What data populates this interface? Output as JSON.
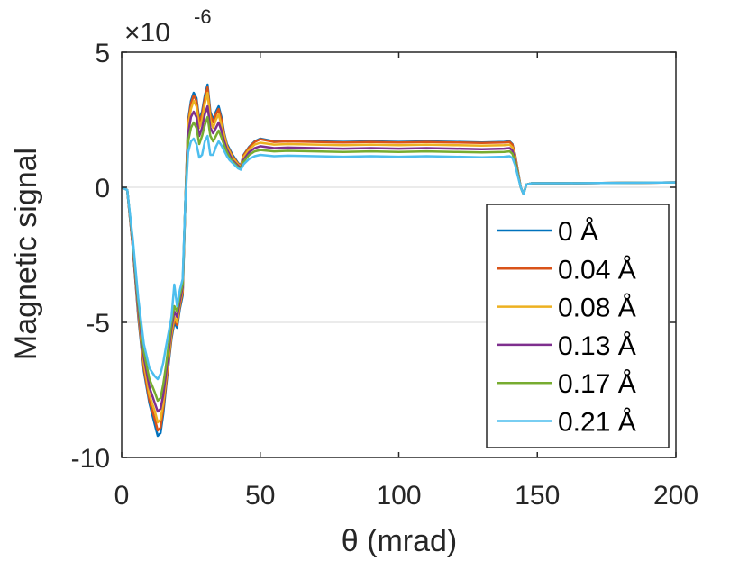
{
  "chart_data": {
    "type": "line",
    "xlabel": "θ (mrad)",
    "ylabel": "Magnetic signal",
    "exponent_base": "×10",
    "exponent_power": "-6",
    "xlim": [
      0,
      200
    ],
    "ylim": [
      -10,
      5
    ],
    "xticks": [
      0,
      50,
      100,
      150,
      200
    ],
    "yticks": [
      -10,
      -5,
      0,
      5
    ],
    "y_gridlines": [
      -5,
      0
    ],
    "legend_location": "bottom-right",
    "x": [
      0,
      2,
      4,
      6,
      8,
      10,
      12,
      13,
      14,
      15,
      16,
      18,
      19,
      20,
      21,
      22,
      23,
      24,
      25,
      26,
      27,
      28,
      29,
      30,
      31,
      32,
      33,
      34,
      35,
      36,
      37,
      38,
      39,
      40,
      42,
      43,
      44,
      46,
      48,
      50,
      55,
      60,
      70,
      80,
      90,
      100,
      110,
      120,
      130,
      138,
      140,
      141,
      142,
      143,
      144,
      145,
      146,
      148,
      150,
      160,
      200
    ],
    "series": [
      {
        "name": "0 Å",
        "color": "#0072BD",
        "values": [
          0,
          -0.1,
          -2.2,
          -4.8,
          -6.8,
          -8.0,
          -8.8,
          -9.2,
          -9.1,
          -8.4,
          -7.4,
          -5.6,
          -5.0,
          -5.2,
          -4.5,
          -4.0,
          -0.5,
          2.5,
          3.2,
          3.5,
          3.3,
          2.5,
          2.8,
          3.4,
          3.8,
          2.8,
          2.5,
          2.8,
          3.0,
          2.6,
          2.0,
          1.6,
          1.4,
          1.2,
          0.9,
          0.8,
          1.2,
          1.5,
          1.7,
          1.8,
          1.7,
          1.72,
          1.7,
          1.68,
          1.7,
          1.68,
          1.7,
          1.68,
          1.66,
          1.68,
          1.7,
          1.6,
          1.2,
          0.6,
          0.0,
          -0.25,
          0.1,
          0.15,
          0.15,
          0.15,
          0.18
        ]
      },
      {
        "name": "0.04 Å",
        "color": "#D95319",
        "values": [
          0,
          -0.1,
          -2.2,
          -4.7,
          -6.7,
          -7.9,
          -8.6,
          -9.0,
          -8.9,
          -8.2,
          -7.3,
          -5.5,
          -4.9,
          -5.1,
          -4.4,
          -3.9,
          -0.5,
          2.4,
          3.1,
          3.4,
          3.2,
          2.4,
          2.7,
          3.3,
          3.7,
          2.7,
          2.4,
          2.7,
          2.9,
          2.5,
          1.95,
          1.55,
          1.35,
          1.15,
          0.88,
          0.78,
          1.18,
          1.48,
          1.68,
          1.78,
          1.68,
          1.7,
          1.68,
          1.66,
          1.68,
          1.66,
          1.68,
          1.66,
          1.64,
          1.66,
          1.68,
          1.58,
          1.18,
          0.58,
          0.0,
          -0.25,
          0.1,
          0.15,
          0.15,
          0.15,
          0.18
        ]
      },
      {
        "name": "0.08 Å",
        "color": "#EDB120",
        "values": [
          0,
          -0.1,
          -2.1,
          -4.6,
          -6.5,
          -7.7,
          -8.3,
          -8.7,
          -8.6,
          -8.0,
          -7.1,
          -5.4,
          -4.8,
          -5.0,
          -4.3,
          -3.8,
          -0.5,
          2.3,
          2.9,
          3.2,
          3.0,
          2.2,
          2.5,
          3.1,
          3.5,
          2.5,
          2.2,
          2.5,
          2.7,
          2.3,
          1.9,
          1.5,
          1.3,
          1.1,
          0.85,
          0.75,
          1.12,
          1.4,
          1.58,
          1.65,
          1.58,
          1.6,
          1.58,
          1.56,
          1.58,
          1.56,
          1.58,
          1.56,
          1.54,
          1.56,
          1.58,
          1.48,
          1.1,
          0.55,
          0.0,
          -0.25,
          0.1,
          0.15,
          0.15,
          0.15,
          0.18
        ]
      },
      {
        "name": "0.13 Å",
        "color": "#7E2F8E",
        "values": [
          0,
          -0.1,
          -2.1,
          -4.5,
          -6.3,
          -7.4,
          -8.0,
          -8.3,
          -8.2,
          -7.7,
          -6.9,
          -5.2,
          -4.6,
          -4.8,
          -4.2,
          -3.7,
          -0.5,
          2.0,
          2.6,
          2.8,
          2.6,
          1.9,
          2.2,
          2.7,
          3.0,
          2.2,
          2.0,
          2.2,
          2.4,
          2.1,
          1.7,
          1.4,
          1.2,
          1.0,
          0.8,
          0.7,
          1.02,
          1.3,
          1.45,
          1.52,
          1.45,
          1.47,
          1.45,
          1.43,
          1.45,
          1.43,
          1.45,
          1.43,
          1.41,
          1.43,
          1.45,
          1.36,
          1.02,
          0.5,
          0.0,
          -0.25,
          0.1,
          0.15,
          0.15,
          0.15,
          0.18
        ]
      },
      {
        "name": "0.17 Å",
        "color": "#77AC30",
        "values": [
          0,
          -0.1,
          -2.0,
          -4.3,
          -6.1,
          -7.1,
          -7.6,
          -7.9,
          -7.8,
          -7.3,
          -6.6,
          -5.0,
          -4.4,
          -4.6,
          -4.0,
          -3.6,
          -0.5,
          1.7,
          2.2,
          2.4,
          2.2,
          1.6,
          1.9,
          2.3,
          2.6,
          1.9,
          1.7,
          1.9,
          2.1,
          1.85,
          1.55,
          1.3,
          1.1,
          0.95,
          0.75,
          0.68,
          0.95,
          1.2,
          1.33,
          1.38,
          1.33,
          1.35,
          1.33,
          1.31,
          1.33,
          1.31,
          1.33,
          1.31,
          1.29,
          1.31,
          1.33,
          1.24,
          0.94,
          0.46,
          0.0,
          -0.25,
          0.1,
          0.15,
          0.15,
          0.15,
          0.18
        ]
      },
      {
        "name": "0.21 Å",
        "color": "#4DBEEE",
        "values": [
          0,
          -0.1,
          -1.9,
          -4.1,
          -5.8,
          -6.7,
          -7.0,
          -7.1,
          -6.9,
          -6.5,
          -5.9,
          -4.8,
          -3.6,
          -4.4,
          -3.8,
          -3.4,
          -0.5,
          1.3,
          1.7,
          1.8,
          1.6,
          1.1,
          1.2,
          1.7,
          1.9,
          1.2,
          1.2,
          1.5,
          1.7,
          1.55,
          1.35,
          1.15,
          1.0,
          0.9,
          0.7,
          0.65,
          0.85,
          1.05,
          1.15,
          1.2,
          1.15,
          1.17,
          1.15,
          1.13,
          1.15,
          1.13,
          1.15,
          1.13,
          1.11,
          1.13,
          1.15,
          1.08,
          0.82,
          0.4,
          0.0,
          -0.25,
          0.1,
          0.15,
          0.15,
          0.15,
          0.18
        ]
      }
    ]
  }
}
